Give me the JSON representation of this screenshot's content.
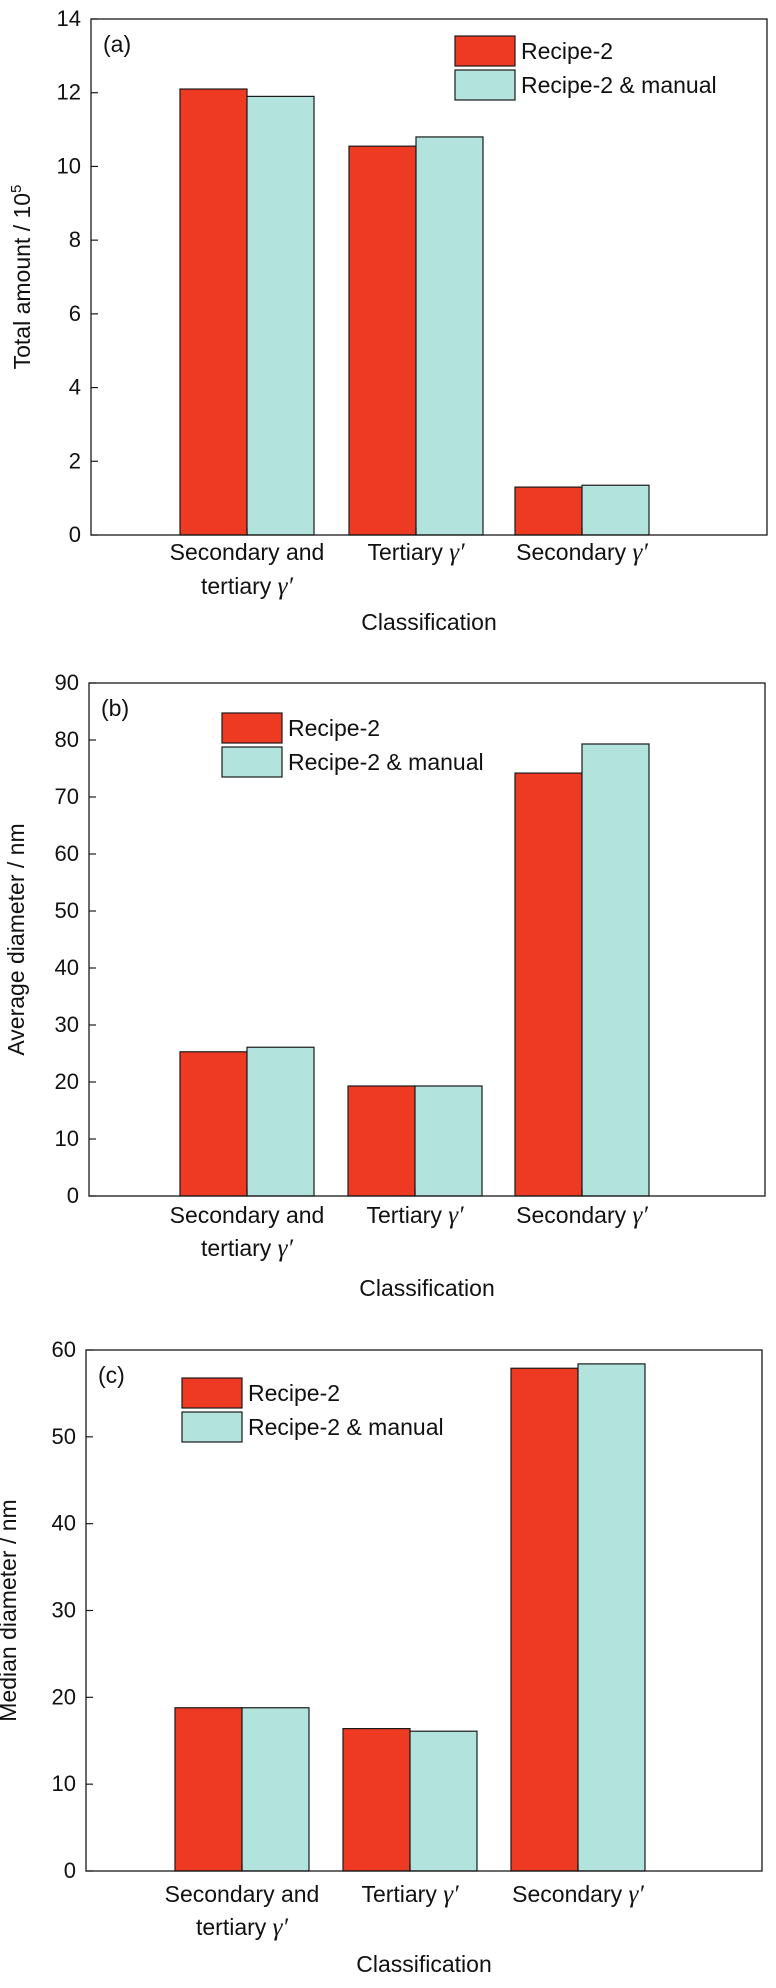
{
  "colors": {
    "series_a": "#EE3A22",
    "series_b": "#B2E3DD",
    "stroke": "#1a1a1a"
  },
  "chart_data": [
    {
      "type": "bar",
      "panel_label": "(a)",
      "xlabel": "Classification",
      "ylabel": "Total amount / 10",
      "ylabel_superscript": "5",
      "ylim": [
        0,
        14
      ],
      "yticks": [
        0,
        2,
        4,
        6,
        8,
        10,
        12,
        14
      ],
      "categories": [
        {
          "lines": [
            "Secondary and",
            "tertiary "
          ],
          "symbol": "γ′"
        },
        {
          "lines": [
            "Tertiary "
          ],
          "symbol": "γ′"
        },
        {
          "lines": [
            "Secondary "
          ],
          "symbol": "γ′"
        }
      ],
      "series": [
        {
          "name": "Recipe-2",
          "values": [
            12.1,
            10.55,
            1.3
          ]
        },
        {
          "name": "Recipe-2 & manual",
          "values": [
            11.9,
            10.8,
            1.35
          ]
        }
      ],
      "legend": "top-right",
      "grid": false
    },
    {
      "type": "bar",
      "panel_label": "(b)",
      "xlabel": "Classification",
      "ylabel": "Average diameter / nm",
      "ylim": [
        0,
        90
      ],
      "yticks": [
        0,
        10,
        20,
        30,
        40,
        50,
        60,
        70,
        80,
        90
      ],
      "categories": [
        {
          "lines": [
            "Secondary and",
            "tertiary "
          ],
          "symbol": "γ′"
        },
        {
          "lines": [
            "Tertiary "
          ],
          "symbol": "γ′"
        },
        {
          "lines": [
            "Secondary  "
          ],
          "symbol": "γ′"
        }
      ],
      "series": [
        {
          "name": "Recipe-2",
          "values": [
            25.3,
            19.3,
            74.2
          ]
        },
        {
          "name": "Recipe-2 & manual",
          "values": [
            26.1,
            19.3,
            79.3
          ]
        }
      ],
      "legend": "top-left",
      "grid": false
    },
    {
      "type": "bar",
      "panel_label": "(c)",
      "xlabel": "Classification",
      "ylabel": "Median diameter / nm",
      "ylim": [
        0,
        60
      ],
      "yticks": [
        0,
        10,
        20,
        30,
        40,
        50,
        60
      ],
      "categories": [
        {
          "lines": [
            "Secondary and",
            "tertiary "
          ],
          "symbol": "γ′"
        },
        {
          "lines": [
            "Tertiary "
          ],
          "symbol": "γ′"
        },
        {
          "lines": [
            "Secondary "
          ],
          "symbol": "γ′"
        }
      ],
      "series": [
        {
          "name": "Recipe-2",
          "values": [
            18.8,
            16.4,
            57.9
          ]
        },
        {
          "name": "Recipe-2 & manual",
          "values": [
            18.8,
            16.1,
            58.4
          ]
        }
      ],
      "legend": "top-left",
      "grid": false
    }
  ]
}
